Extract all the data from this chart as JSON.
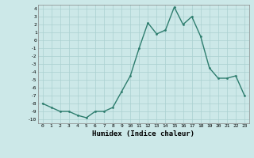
{
  "x": [
    0,
    1,
    2,
    3,
    4,
    5,
    6,
    7,
    8,
    9,
    10,
    11,
    12,
    13,
    14,
    15,
    16,
    17,
    18,
    19,
    20,
    21,
    22,
    23
  ],
  "y": [
    -8,
    -8.5,
    -9,
    -9,
    -9.5,
    -9.8,
    -9,
    -9,
    -8.5,
    -6.5,
    -4.5,
    -1,
    2.2,
    0.8,
    1.3,
    4.2,
    2,
    3,
    0.5,
    -3.5,
    -4.8,
    -4.8,
    -4.5,
    -7
  ],
  "line_color": "#2e7d6e",
  "marker": "o",
  "marker_size": 2,
  "bg_color": "#cce8e8",
  "grid_color": "#aad0d0",
  "xlabel": "Humidex (Indice chaleur)",
  "xlim": [
    -0.5,
    23.5
  ],
  "ylim": [
    -10.5,
    4.5
  ],
  "yticks": [
    -10,
    -9,
    -8,
    -7,
    -6,
    -5,
    -4,
    -3,
    -2,
    -1,
    0,
    1,
    2,
    3,
    4
  ],
  "xticks": [
    0,
    1,
    2,
    3,
    4,
    5,
    6,
    7,
    8,
    9,
    10,
    11,
    12,
    13,
    14,
    15,
    16,
    17,
    18,
    19,
    20,
    21,
    22,
    23
  ]
}
